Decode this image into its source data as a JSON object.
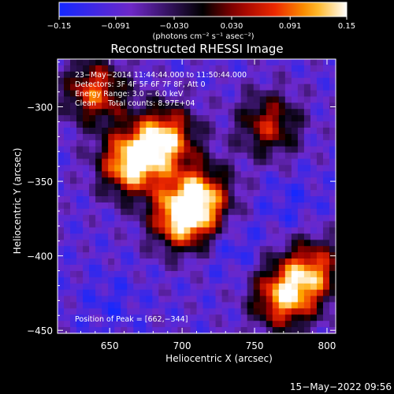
{
  "chart_data": {
    "type": "heatmap",
    "title": "Reconstructed RHESSI Image",
    "xlabel": "Heliocentric X (arcsec)",
    "ylabel": "Heliocentric Y (arcsec)",
    "xlim": [
      614,
      806
    ],
    "ylim": [
      -452,
      -268
    ],
    "x_ticks": [
      650,
      700,
      750,
      800
    ],
    "y_ticks": [
      -300,
      -350,
      -400,
      -450
    ],
    "colorbar": {
      "label": "(photons cm⁻² s⁻¹ asec⁻²)",
      "range": [
        -0.15,
        0.15
      ],
      "tick_values": [
        -0.15,
        -0.091,
        -0.03,
        0.03,
        0.091,
        0.15
      ],
      "tick_labels": [
        "−0.15",
        "−0.091",
        "−0.030",
        "0.030",
        "0.091",
        "0.15"
      ]
    },
    "info_lines": [
      "23−May−2014 11:44:44.000 to 11:50:44.000",
      "Detectors: 3F 4F 5F 6F 7F 8F, Att 0",
      "Energy Range: 3.0 − 6.0 keV",
      "Clean     Total counts: 8.97E+04"
    ],
    "peak_label": "Position of Peak = [662,−344]",
    "peak": [
      662,
      -344
    ],
    "sources": [
      {
        "x": 665,
        "y": -338,
        "amplitude": 0.15
      },
      {
        "x": 688,
        "y": -321,
        "amplitude": 0.12
      },
      {
        "x": 640,
        "y": -290,
        "amplitude": 0.08
      },
      {
        "x": 700,
        "y": -375,
        "amplitude": 0.13
      },
      {
        "x": 713,
        "y": -360,
        "amplitude": 0.09
      },
      {
        "x": 770,
        "y": -428,
        "amplitude": 0.11
      },
      {
        "x": 790,
        "y": -410,
        "amplitude": 0.08
      },
      {
        "x": 760,
        "y": -312,
        "amplitude": 0.05
      }
    ],
    "negative_regions": [
      {
        "x": 735,
        "y": -395,
        "amplitude": -0.06
      },
      {
        "x": 650,
        "y": -432,
        "amplitude": -0.05
      },
      {
        "x": 775,
        "y": -365,
        "amplitude": -0.05
      }
    ]
  },
  "timestamp": "15−May−2022 09:56"
}
